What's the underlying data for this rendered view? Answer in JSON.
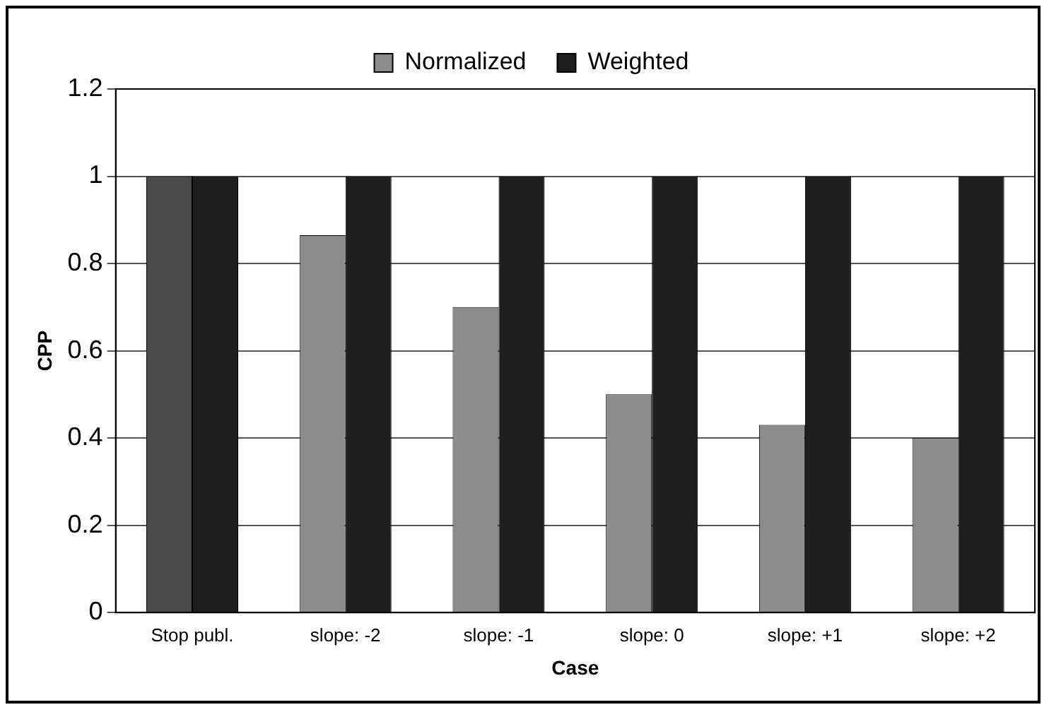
{
  "chart_data": {
    "type": "bar",
    "xlabel": "Case",
    "ylabel": "CPP",
    "categories": [
      "Stop publ.",
      "slope: -2",
      "slope: -1",
      "slope: 0",
      "slope: +1",
      "slope: +2"
    ],
    "series": [
      {
        "name": "Normalized",
        "color": "#8c8c8c",
        "colors": [
          "#4a4a4a",
          "#8c8c8c",
          "#8c8c8c",
          "#8c8c8c",
          "#8c8c8c",
          "#8c8c8c"
        ],
        "values": [
          1,
          0.865,
          0.7,
          0.5,
          0.43,
          0.4
        ]
      },
      {
        "name": "Weighted",
        "color": "#1e1e1e",
        "values": [
          1,
          1,
          1,
          1,
          1,
          1
        ]
      }
    ],
    "ylim": [
      0,
      1.2
    ],
    "yticks": [
      0,
      0.2,
      0.4,
      0.6,
      0.8,
      1,
      1.2
    ],
    "grid": "y",
    "legend": "top"
  }
}
